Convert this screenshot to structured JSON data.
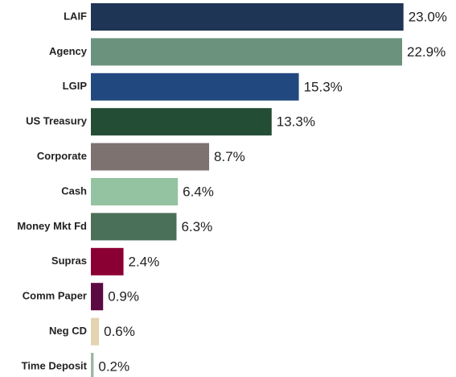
{
  "chart_data": {
    "type": "hbar",
    "categories": [
      "LAIF",
      "Agency",
      "LGIP",
      "US Treasury",
      "Corporate",
      "Cash",
      "Money Mkt Fd",
      "Supras",
      "Comm Paper",
      "Neg CD",
      "Time Deposit"
    ],
    "values": [
      23.0,
      22.9,
      15.3,
      13.3,
      8.7,
      6.4,
      6.3,
      2.4,
      0.9,
      0.6,
      0.2
    ],
    "value_labels": [
      "23.0%",
      "22.9%",
      "15.3%",
      "13.3%",
      "8.7%",
      "6.4%",
      "6.3%",
      "2.4%",
      "0.9%",
      "0.6%",
      "0.2%"
    ],
    "colors": [
      "#1f3556",
      "#6b927c",
      "#22497f",
      "#234d35",
      "#7d7270",
      "#93c3a0",
      "#4a705a",
      "#8b0033",
      "#5c0a42",
      "#e3d3b0",
      "#9fb5a6"
    ]
  }
}
